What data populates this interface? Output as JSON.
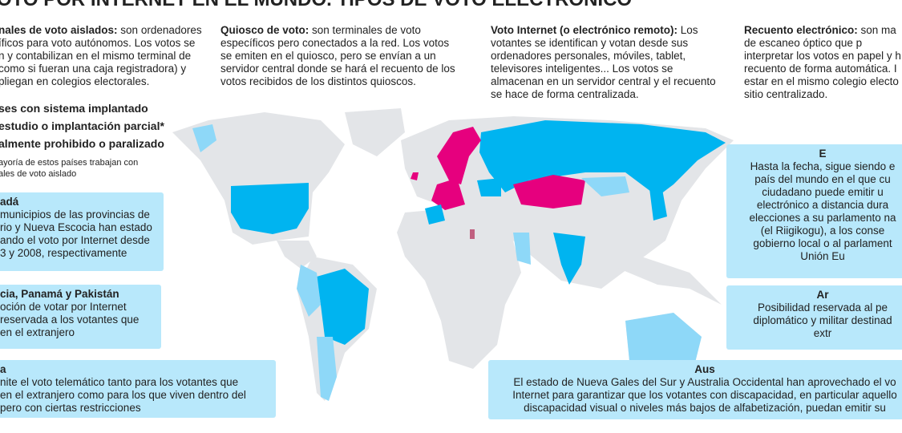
{
  "header": {
    "title": "OTO POR INTERNET EN EL MUNDO. TIPOS DE VOTO ELECTRÓNICO"
  },
  "columns": [
    {
      "term": "nales de voto aislados:",
      "lines": [
        " son ordenadores",
        "íficos para voto autónomos. Los votos se",
        "n y contabilizan en el mismo terminal de",
        "como si fueran una caja registradora) y",
        "pliegan en colegios electorales."
      ]
    },
    {
      "term": "Quiosco de voto:",
      "lines": [
        " son terminales de voto",
        "específicos pero conectados a la red. Los votos",
        "se emiten en el quiosco, pero se envían a un",
        "servidor central donde se hará el recuento de los",
        "votos recibidos de los distintos quioscos."
      ]
    },
    {
      "term": "Voto Internet (o electrónico remoto):",
      "lines": [
        " Los",
        "votantes se identifican y votan desde sus",
        "ordenadores personales, móviles, tablet,",
        "televisores inteligentes... Los votos se",
        "almacenan en un servidor central y el recuento",
        "se hace de forma centralizada."
      ]
    },
    {
      "term": "Recuento electrónico:",
      "lines": [
        " son ma",
        "de escaneo óptico que p",
        "interpretar los votos en papel y h",
        "recuento de forma automática. I",
        "estar en el mismo colegio electo",
        "sitio centralizado."
      ]
    }
  ],
  "legend": {
    "items": [
      "ses con sistema implantado",
      "estudio o implantación parcial*",
      "almente prohibido o paralizado"
    ],
    "note": [
      "ayoría de estos países trabajan con",
      "ales de voto aislado"
    ]
  },
  "boxes": [
    {
      "title": "adá",
      "lines": [
        "municipios de las provincias de",
        "rio y Nueva Escocia han estado",
        "ando el voto por Internet desde",
        "3 y 2008, respectivamente"
      ]
    },
    {
      "title": "cia, Panamá y Pakistán",
      "lines": [
        "oción de votar por Internet",
        "reservada a los votantes que",
        "en el extranjero"
      ]
    },
    {
      "title": "a",
      "lines": [
        "nite el voto telemático tanto para los votantes que",
        "en el extranjero como para los que viven dentro del",
        "pero con ciertas restricciones"
      ]
    },
    {
      "title": "E",
      "lines": [
        "Hasta la fecha, sigue siendo e",
        "país del mundo en el que cu",
        "ciudadano puede emitir u",
        "electrónico a distancia dura",
        "elecciones a su parlamento na",
        "(el Riigikogu), a los conse",
        "gobierno local o al parlament",
        "Unión Eu"
      ]
    },
    {
      "title": "Ar",
      "lines": [
        "Posibilidad reservada al pe",
        "diplomático y militar destinad",
        "extr"
      ]
    },
    {
      "title": "Aus",
      "lines": [
        "El estado de Nueva Gales del Sur y Australia Occidental han aprovechado el vo",
        "Internet para garantizar que los votantes con discapacidad, en particular aquello",
        "discapacidad visual o niveles más bajos de alfabetización, puedan emitir su"
      ]
    }
  ]
}
